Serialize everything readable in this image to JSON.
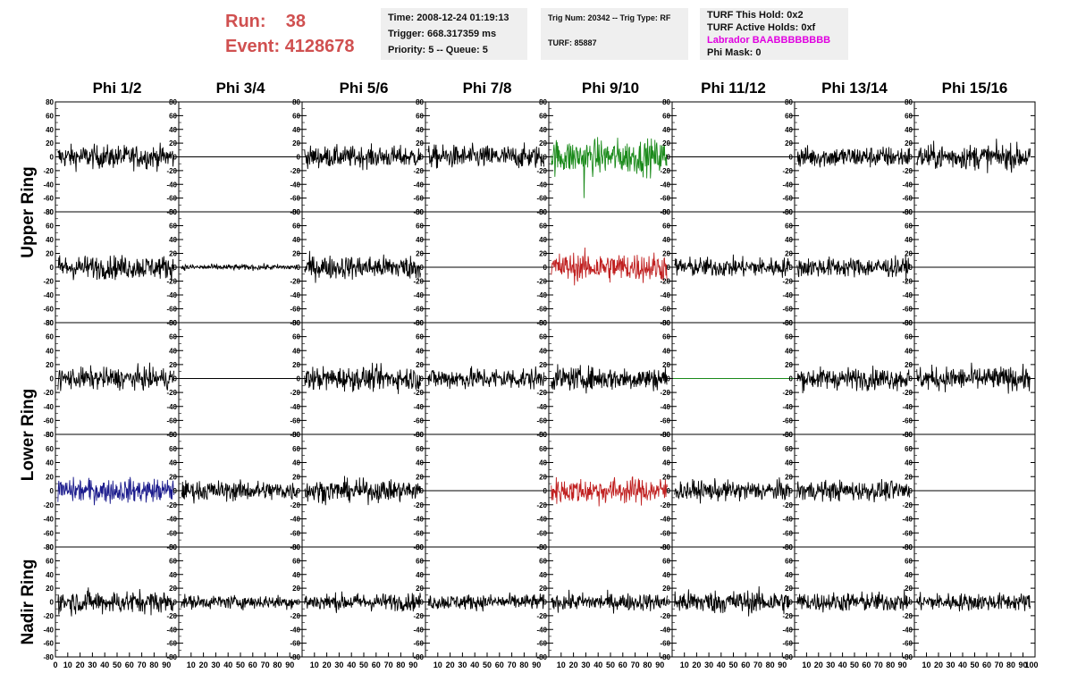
{
  "header": {
    "run_label": "Run:",
    "run_value": "38",
    "event_label": "Event:",
    "event_value": "4128678",
    "time": "Time: 2008-12-24 01:19:13",
    "trigger": "Trigger: 668.317359 ms",
    "priority": "Priority: 5 -- Queue: 5",
    "trig_num": "Trig Num: 20342 -- Trig Type: RF",
    "turf": "TURF: 85887",
    "turf_hold": "TURF This Hold: 0x2",
    "turf_active": "TURF Active Holds: 0xf",
    "labrador": "Labrador BAABBBBBBBB",
    "phi_mask": "Phi Mask: 0"
  },
  "chart_data": {
    "type": "line",
    "columns": [
      "Phi 1/2",
      "Phi 3/4",
      "Phi 5/6",
      "Phi 7/8",
      "Phi 9/10",
      "Phi 11/12",
      "Phi 13/14",
      "Phi 15/16"
    ],
    "ring_labels": [
      {
        "label": "Upper Ring",
        "rows": [
          0,
          1
        ]
      },
      {
        "label": "Lower Ring",
        "rows": [
          2,
          3
        ]
      },
      {
        "label": "Nadir Ring",
        "rows": [
          4
        ]
      }
    ],
    "ylim": [
      -80,
      80
    ],
    "yticks": [
      -80,
      -60,
      -40,
      -20,
      0,
      20,
      40,
      60,
      80
    ],
    "xlim": [
      0,
      100
    ],
    "xtick_labels": [
      "10",
      "20",
      "30",
      "40",
      "50",
      "60",
      "70",
      "80",
      "90"
    ],
    "colors": {
      "black": "#000000",
      "green": "#1a8a1a",
      "red": "#c02020",
      "blue": "#1a1a8c",
      "accent": "#d05050",
      "highlight": "#e000e0"
    },
    "waveforms": [
      [
        {
          "amp": 12,
          "color": "black"
        },
        {
          "amp": 0,
          "color": "black"
        },
        {
          "amp": 11,
          "color": "black"
        },
        {
          "amp": 12,
          "color": "black"
        },
        {
          "amp": 18,
          "color": "green",
          "spike": -60
        },
        {
          "amp": 0,
          "color": "black"
        },
        {
          "amp": 11,
          "color": "black"
        },
        {
          "amp": 13,
          "color": "black"
        }
      ],
      [
        {
          "amp": 12,
          "color": "black"
        },
        {
          "amp": 3,
          "color": "black"
        },
        {
          "amp": 12,
          "color": "black"
        },
        {
          "amp": 0,
          "color": "black"
        },
        {
          "amp": 15,
          "color": "red"
        },
        {
          "amp": 10,
          "color": "black"
        },
        {
          "amp": 10,
          "color": "black"
        },
        {
          "amp": 0,
          "color": "black"
        }
      ],
      [
        {
          "amp": 11,
          "color": "black"
        },
        {
          "amp": 0,
          "color": "black"
        },
        {
          "amp": 12,
          "color": "black"
        },
        {
          "amp": 11,
          "color": "black"
        },
        {
          "amp": 12,
          "color": "black"
        },
        {
          "amp": 0,
          "color": "green"
        },
        {
          "amp": 11,
          "color": "black"
        },
        {
          "amp": 12,
          "color": "black"
        }
      ],
      [
        {
          "amp": 12,
          "color": "blue"
        },
        {
          "amp": 10,
          "color": "black"
        },
        {
          "amp": 11,
          "color": "black"
        },
        {
          "amp": 0,
          "color": "black"
        },
        {
          "amp": 13,
          "color": "red"
        },
        {
          "amp": 10,
          "color": "black"
        },
        {
          "amp": 10,
          "color": "black"
        },
        {
          "amp": 0,
          "color": "black"
        }
      ],
      [
        {
          "amp": 12,
          "color": "black"
        },
        {
          "amp": 7,
          "color": "black"
        },
        {
          "amp": 9,
          "color": "black"
        },
        {
          "amp": 8,
          "color": "black"
        },
        {
          "amp": 9,
          "color": "black"
        },
        {
          "amp": 12,
          "color": "black"
        },
        {
          "amp": 10,
          "color": "black"
        },
        {
          "amp": 9,
          "color": "black"
        }
      ]
    ]
  }
}
